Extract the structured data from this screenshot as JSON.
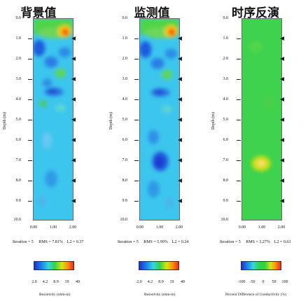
{
  "panels": [
    {
      "title": "背景值",
      "ylabel": "Depth (m)",
      "yticks": [
        "0.0",
        "1.0",
        "2.0",
        "3.0",
        "4.0",
        "5.0",
        "6.0",
        "7.0",
        "8.0",
        "9.0",
        "10.0"
      ],
      "xticks": [
        "0.00",
        "1.00",
        "2.00"
      ],
      "stats": {
        "iteration": "Iteration = 5",
        "rms": "RMS = 7.81%",
        "l2": "L2 = 0.37"
      },
      "colorbar": {
        "ticks": [
          "2.0",
          "4.2",
          "8.9",
          "19",
          "40"
        ],
        "label": "Resistivity (ohm-m)"
      }
    },
    {
      "title": "监测值",
      "ylabel": "Depth (m)",
      "yticks": [
        "0.0",
        "1.0",
        "2.0",
        "3.0",
        "4.0",
        "5.0",
        "6.0",
        "7.0",
        "8.0",
        "9.0",
        "10.0"
      ],
      "xticks": [
        "0.00",
        "1.00",
        "2.00"
      ],
      "stats": {
        "iteration": "Iteration = 5",
        "rms": "RMS = 5.90%",
        "l2": "L2 = 0.24"
      },
      "colorbar": {
        "ticks": [
          "2.0",
          "4.2",
          "8.9",
          "19",
          "40"
        ],
        "label": "Resistivity (ohm-m)"
      }
    },
    {
      "title": "时序反演",
      "ylabel": "Depth (m)",
      "yticks": [
        "0.0",
        "1.0",
        "2.0",
        "3.0",
        "4.0",
        "5.0",
        "6.0",
        "7.0",
        "8.0",
        "9.0",
        "10.0"
      ],
      "xticks": [
        "0.00",
        "1.00",
        "2.00"
      ],
      "stats": {
        "iteration": "Iteration = 5",
        "rms": "RMS = 3.27%",
        "l2": "L2 = 0.63"
      },
      "colorbar": {
        "ticks": [
          "-100",
          "-50",
          "0",
          "50",
          "100"
        ],
        "label": "Percent Difference of Conductivity (%)"
      }
    }
  ],
  "colors": {
    "cyan_bg": "#34c8f0",
    "blue_deep": "#1f4fd8",
    "green": "#31d24a",
    "yellow": "#e9e60f",
    "red": "#ff2a14"
  }
}
